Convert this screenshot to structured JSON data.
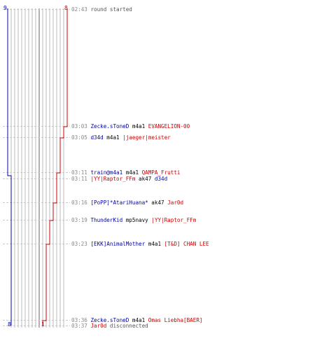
{
  "colors": {
    "team_blue": "#0000aa",
    "team_red": "#cc0000",
    "neutral_text": "#555555",
    "time_text": "#888888",
    "player_line": "#bbbbbb",
    "player_line_dark": "#666666",
    "dash_line": "#c8c8c8"
  },
  "counts": {
    "blue_start": "9",
    "red_start": "8",
    "blue_end": "8",
    "red_end": "1"
  },
  "events": [
    {
      "time": "02:43",
      "parts": [
        {
          "text": "round started",
          "role": "neutral"
        }
      ]
    },
    {
      "time": "03:03",
      "parts": [
        {
          "text": "Zecke.sToneD",
          "role": "blue"
        },
        {
          "text": " m4a1 ",
          "role": "weapon"
        },
        {
          "text": "EVANGELION-00",
          "role": "red"
        }
      ]
    },
    {
      "time": "03:05",
      "parts": [
        {
          "text": "d34d",
          "role": "blue"
        },
        {
          "text": " m4a1 ",
          "role": "weapon"
        },
        {
          "text": "|jaeger|meister",
          "role": "red"
        }
      ]
    },
    {
      "time": "03:11",
      "parts": [
        {
          "text": "train@m4a1",
          "role": "blue"
        },
        {
          "text": " m4a1 ",
          "role": "weapon"
        },
        {
          "text": "QAMPA_Frutti",
          "role": "red"
        }
      ]
    },
    {
      "time": "03:11",
      "parts": [
        {
          "text": "|YY|Raptor_FFm",
          "role": "red"
        },
        {
          "text": " ak47 ",
          "role": "weapon"
        },
        {
          "text": "d34d",
          "role": "blue"
        }
      ]
    },
    {
      "time": "03:16",
      "parts": [
        {
          "text": "[PoPP]*AtariHuana*",
          "role": "blue"
        },
        {
          "text": " ak47 ",
          "role": "weapon"
        },
        {
          "text": "Jar0d",
          "role": "red"
        }
      ]
    },
    {
      "time": "03:19",
      "parts": [
        {
          "text": "ThunderKid",
          "role": "blue"
        },
        {
          "text": " mp5navy ",
          "role": "weapon"
        },
        {
          "text": "|YY|Raptor_FFm",
          "role": "red"
        }
      ]
    },
    {
      "time": "03:23",
      "parts": [
        {
          "text": "[EKK]AnimalMother",
          "role": "blue"
        },
        {
          "text": " m4a1 ",
          "role": "weapon"
        },
        {
          "text": "[T&D] CHAN LEE",
          "role": "red"
        }
      ]
    },
    {
      "time": "03:36",
      "parts": [
        {
          "text": "Zecke.sToneD",
          "role": "blue"
        },
        {
          "text": " m4a1 ",
          "role": "weapon"
        },
        {
          "text": "Omas Liebha[BAER]",
          "role": "red"
        }
      ]
    },
    {
      "time": "03:37",
      "parts": [
        {
          "text": "Jar0d",
          "role": "red"
        },
        {
          "text": " disconnected",
          "role": "neutral"
        }
      ]
    }
  ]
}
